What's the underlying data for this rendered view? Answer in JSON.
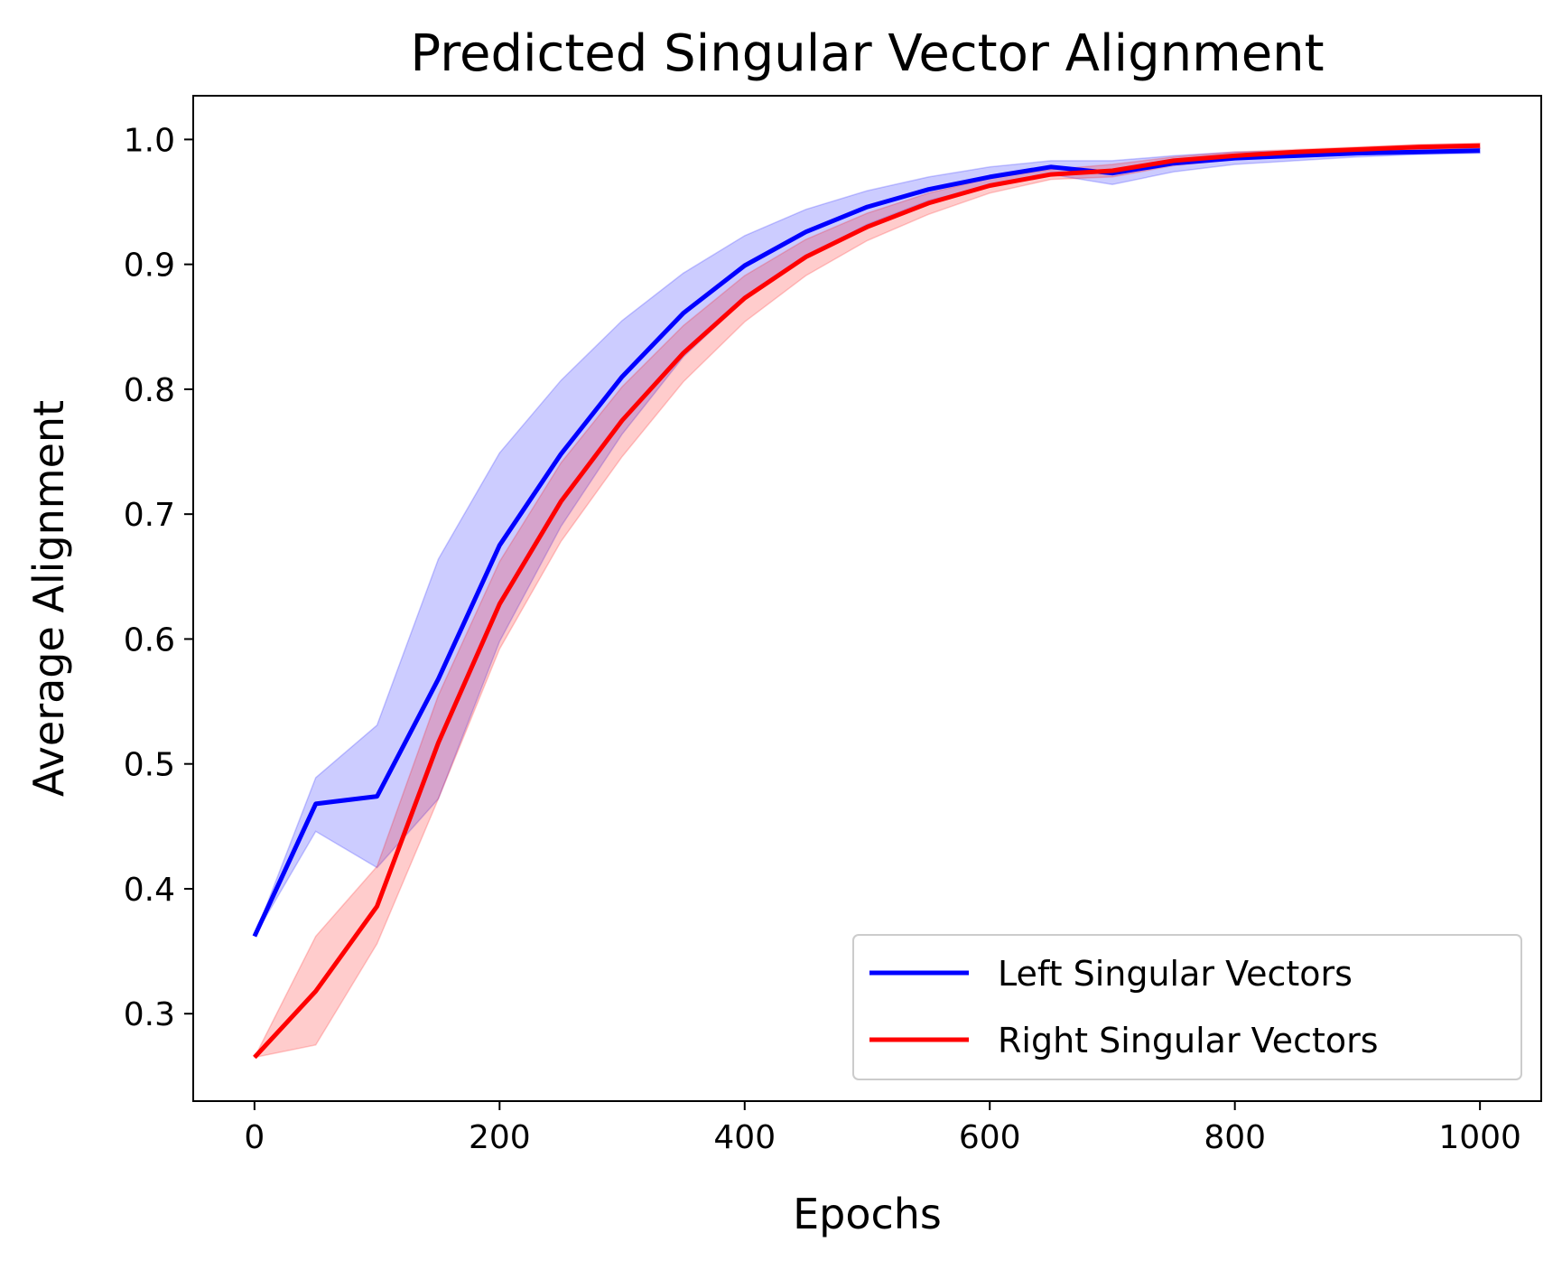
{
  "chart_data": {
    "type": "line",
    "title": "Predicted Singular Vector Alignment",
    "xlabel": "Epochs",
    "ylabel": "Average Alignment",
    "xlim": [
      -50,
      1050
    ],
    "ylim": [
      0.23,
      1.035
    ],
    "xticks": [
      0,
      200,
      400,
      600,
      800,
      1000
    ],
    "xtick_labels": [
      "0",
      "200",
      "400",
      "600",
      "800",
      "1000"
    ],
    "yticks": [
      0.3,
      0.4,
      0.5,
      0.6,
      0.7,
      0.8,
      0.9,
      1.0
    ],
    "ytick_labels": [
      "0.3",
      "0.4",
      "0.5",
      "0.6",
      "0.7",
      "0.8",
      "0.9",
      "1.0"
    ],
    "grid": false,
    "legend_position": "lower-right",
    "x": [
      0,
      50,
      100,
      150,
      200,
      250,
      300,
      350,
      400,
      450,
      500,
      550,
      600,
      650,
      700,
      750,
      800,
      850,
      900,
      950,
      1000
    ],
    "series": [
      {
        "name": "Left Singular Vectors",
        "color": "#0000ff",
        "values": [
          0.362,
          0.468,
          0.474,
          0.568,
          0.675,
          0.748,
          0.81,
          0.861,
          0.899,
          0.926,
          0.946,
          0.96,
          0.97,
          0.978,
          0.973,
          0.981,
          0.985,
          0.987,
          0.989,
          0.99,
          0.991
        ],
        "band_lower": [
          0.362,
          0.446,
          0.417,
          0.472,
          0.598,
          0.69,
          0.764,
          0.826,
          0.872,
          0.906,
          0.932,
          0.951,
          0.963,
          0.972,
          0.964,
          0.974,
          0.98,
          0.983,
          0.986,
          0.988,
          0.989
        ],
        "band_upper": [
          0.362,
          0.489,
          0.531,
          0.664,
          0.749,
          0.807,
          0.855,
          0.893,
          0.923,
          0.944,
          0.959,
          0.97,
          0.978,
          0.983,
          0.983,
          0.987,
          0.99,
          0.991,
          0.992,
          0.993,
          0.993
        ]
      },
      {
        "name": "Right Singular Vectors",
        "color": "#ff0000",
        "values": [
          0.265,
          0.318,
          0.386,
          0.517,
          0.628,
          0.71,
          0.775,
          0.829,
          0.873,
          0.906,
          0.93,
          0.949,
          0.963,
          0.972,
          0.975,
          0.983,
          0.987,
          0.99,
          0.992,
          0.994,
          0.995
        ],
        "band_lower": [
          0.265,
          0.275,
          0.356,
          0.472,
          0.592,
          0.678,
          0.746,
          0.806,
          0.854,
          0.891,
          0.919,
          0.94,
          0.957,
          0.968,
          0.97,
          0.979,
          0.984,
          0.988,
          0.99,
          0.992,
          0.993
        ],
        "band_upper": [
          0.265,
          0.362,
          0.418,
          0.555,
          0.662,
          0.741,
          0.802,
          0.851,
          0.891,
          0.92,
          0.941,
          0.957,
          0.969,
          0.976,
          0.98,
          0.986,
          0.99,
          0.992,
          0.994,
          0.996,
          0.997
        ]
      }
    ]
  }
}
